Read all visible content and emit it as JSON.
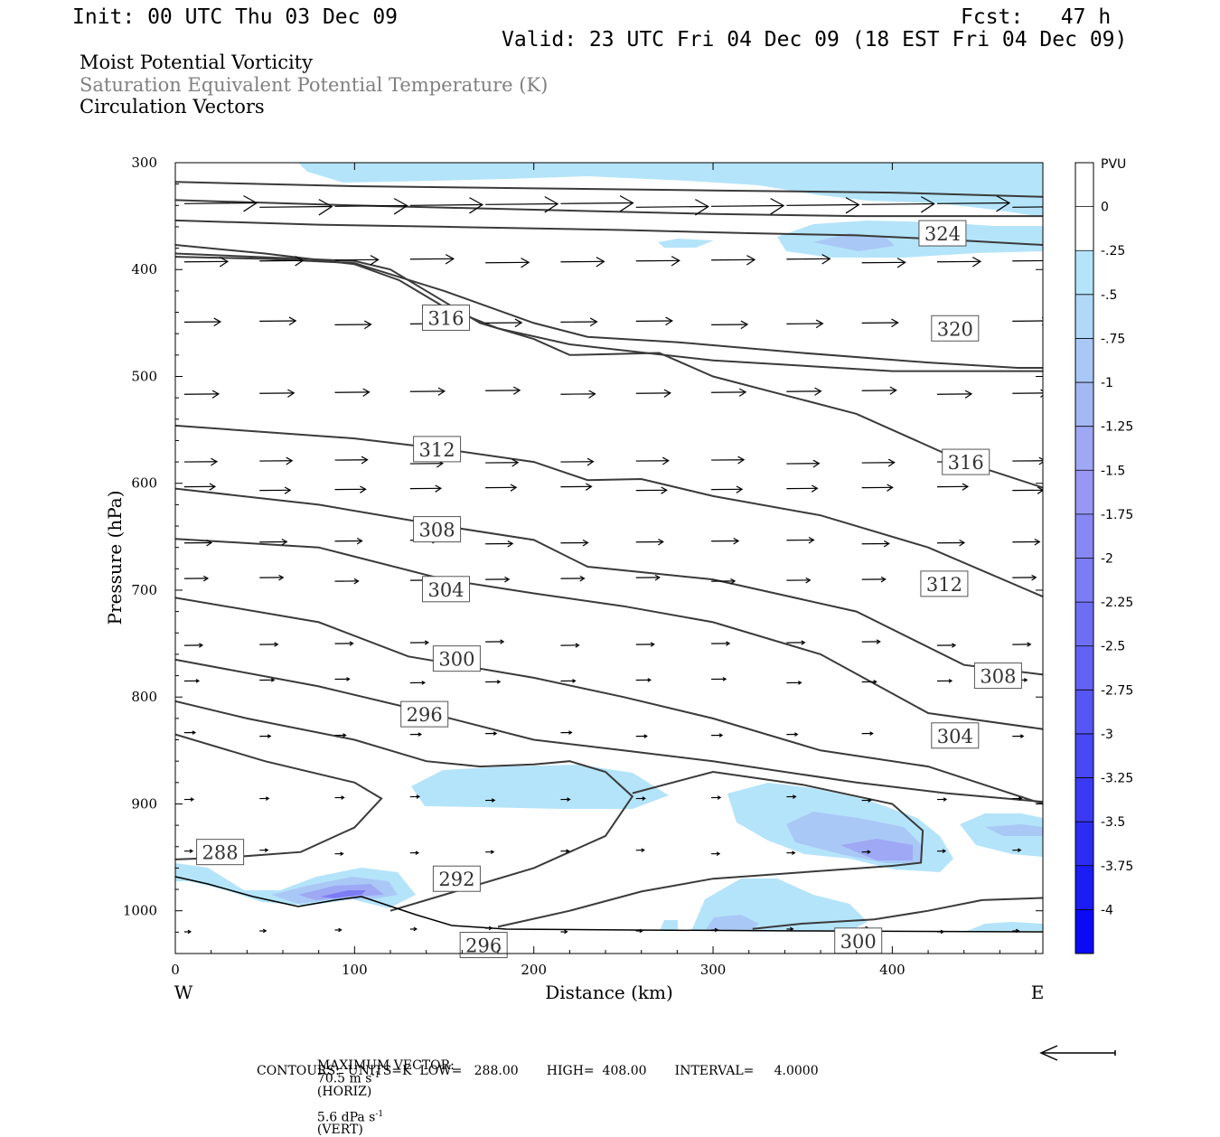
{
  "header": {
    "init": "Init: 00 UTC Thu 03 Dec 09",
    "fcst": "Fcst:   47 h",
    "valid": "Valid: 23 UTC Fri 04 Dec 09 (18 EST Fri 04 Dec 09)"
  },
  "legend": {
    "line1": "Moist Potential Vorticity",
    "line2": "Saturation Equivalent Potential Temperature (K)",
    "line3": "Circulation Vectors",
    "line1_color": "#000000",
    "line2_color": "#808080",
    "line3_color": "#000000"
  },
  "footer": {
    "max_vector_label": "MAXIMUM VECTOR:",
    "horiz_value": "70.5 m s",
    "horiz_exp": "-1",
    "horiz_unit": "(HORIZ)",
    "vert_value": "5.6 dPa s",
    "vert_exp": "-1",
    "vert_unit": "(VERT)",
    "contours": "CONTOURS:  UNITS=K  LOW=   288.00       HIGH=  408.00       INTERVAL=     4.0000"
  },
  "chart_data": {
    "type": "cross-section",
    "xlabel": "Distance (km)",
    "ylabel": "Pressure (hPa)",
    "xlim": [
      0,
      484
    ],
    "ylim": [
      1040,
      300
    ],
    "x_ticks": [
      0,
      100,
      200,
      300,
      400
    ],
    "y_ticks": [
      300,
      400,
      500,
      600,
      700,
      800,
      900,
      1000
    ],
    "x_end_labels": {
      "left": "W",
      "right": "E"
    },
    "colorbar": {
      "unit": "PVU",
      "levels": [
        "0",
        "-.25",
        "-.5",
        "-.75",
        "-1",
        "-1.25",
        "-1.5",
        "-1.75",
        "-2",
        "-2.25",
        "-2.5",
        "-2.75",
        "-3",
        "-3.25",
        "-3.5",
        "-3.75",
        "-4"
      ],
      "colors": [
        "#ffffff",
        "#ffffff",
        "#b4e4fa",
        "#b0d8f8",
        "#aac8f6",
        "#a4b8f4",
        "#9ea8f4",
        "#9898f4",
        "#8888f4",
        "#7c7cf4",
        "#6e6ef4",
        "#6262f4",
        "#5656f4",
        "#4848f4",
        "#3a3af4",
        "#2c2cf4",
        "#1c1cf4",
        "#0a0af4"
      ]
    },
    "contour_labels": [
      {
        "value": "324",
        "x": 428,
        "p": 366
      },
      {
        "value": "316",
        "x": 151,
        "p": 445
      },
      {
        "value": "320",
        "x": 435,
        "p": 455
      },
      {
        "value": "312",
        "x": 146,
        "p": 568
      },
      {
        "value": "316",
        "x": 441,
        "p": 580
      },
      {
        "value": "308",
        "x": 146,
        "p": 643
      },
      {
        "value": "304",
        "x": 151,
        "p": 699
      },
      {
        "value": "312",
        "x": 429,
        "p": 694
      },
      {
        "value": "300",
        "x": 157,
        "p": 764
      },
      {
        "value": "308",
        "x": 459,
        "p": 780
      },
      {
        "value": "296",
        "x": 139,
        "p": 816
      },
      {
        "value": "304",
        "x": 435,
        "p": 836
      },
      {
        "value": "288",
        "x": 25,
        "p": 945
      },
      {
        "value": "292",
        "x": 157,
        "p": 970
      },
      {
        "value": "296",
        "x": 172,
        "p": 1032
      },
      {
        "value": "300",
        "x": 381,
        "p": 1028
      }
    ],
    "isentropes": [
      [
        [
          0,
          318
        ],
        [
          100,
          322
        ],
        [
          200,
          324
        ],
        [
          300,
          326
        ],
        [
          400,
          328
        ],
        [
          484,
          332
        ]
      ],
      [
        [
          0,
          335
        ],
        [
          100,
          340
        ],
        [
          200,
          344
        ],
        [
          300,
          348
        ],
        [
          380,
          350
        ],
        [
          484,
          350
        ]
      ],
      [
        [
          0,
          354
        ],
        [
          80,
          358
        ],
        [
          150,
          360
        ],
        [
          250,
          363
        ],
        [
          320,
          366
        ],
        [
          380,
          368
        ],
        [
          430,
          372
        ],
        [
          484,
          377
        ]
      ],
      [
        [
          0,
          377
        ],
        [
          50,
          385
        ],
        [
          100,
          395
        ],
        [
          125,
          410
        ],
        [
          150,
          435
        ],
        [
          180,
          455
        ],
        [
          220,
          470
        ],
        [
          300,
          485
        ],
        [
          400,
          495
        ],
        [
          484,
          495
        ]
      ],
      [
        [
          0,
          388
        ],
        [
          50,
          390
        ],
        [
          100,
          394
        ],
        [
          150,
          420
        ],
        [
          200,
          450
        ],
        [
          230,
          463
        ],
        [
          280,
          468
        ],
        [
          350,
          478
        ],
        [
          420,
          487
        ],
        [
          470,
          492
        ],
        [
          484,
          492
        ]
      ],
      [
        [
          0,
          385
        ],
        [
          100,
          392
        ],
        [
          120,
          400
        ],
        [
          145,
          425
        ],
        [
          170,
          450
        ],
        [
          200,
          465
        ],
        [
          220,
          480
        ],
        [
          270,
          478
        ],
        [
          300,
          500
        ],
        [
          380,
          535
        ],
        [
          440,
          580
        ],
        [
          484,
          604
        ]
      ],
      [
        [
          0,
          546
        ],
        [
          100,
          558
        ],
        [
          150,
          568
        ],
        [
          200,
          580
        ],
        [
          230,
          597
        ],
        [
          260,
          596
        ],
        [
          300,
          612
        ],
        [
          360,
          630
        ],
        [
          420,
          660
        ],
        [
          484,
          706
        ]
      ],
      [
        [
          0,
          605
        ],
        [
          80,
          620
        ],
        [
          150,
          640
        ],
        [
          200,
          653
        ],
        [
          230,
          678
        ],
        [
          300,
          690
        ],
        [
          380,
          720
        ],
        [
          440,
          770
        ],
        [
          484,
          779
        ]
      ],
      [
        [
          0,
          652
        ],
        [
          80,
          660
        ],
        [
          150,
          690
        ],
        [
          200,
          703
        ],
        [
          250,
          715
        ],
        [
          300,
          730
        ],
        [
          360,
          760
        ],
        [
          420,
          815
        ],
        [
          484,
          830
        ]
      ],
      [
        [
          0,
          707
        ],
        [
          80,
          730
        ],
        [
          130,
          762
        ],
        [
          200,
          782
        ],
        [
          250,
          800
        ],
        [
          300,
          820
        ],
        [
          360,
          850
        ],
        [
          420,
          865
        ],
        [
          484,
          900
        ]
      ],
      [
        [
          0,
          765
        ],
        [
          80,
          790
        ],
        [
          130,
          810
        ],
        [
          200,
          840
        ],
        [
          250,
          850
        ],
        [
          300,
          860
        ],
        [
          380,
          880
        ],
        [
          430,
          890
        ],
        [
          484,
          898
        ]
      ],
      [
        [
          0,
          804
        ],
        [
          40,
          820
        ],
        [
          100,
          840
        ],
        [
          140,
          860
        ],
        [
          170,
          865
        ],
        [
          200,
          863
        ],
        [
          220,
          860
        ],
        [
          240,
          870
        ],
        [
          255,
          893
        ],
        [
          240,
          930
        ],
        [
          200,
          960
        ],
        [
          150,
          985
        ],
        [
          120,
          1000
        ]
      ],
      [
        [
          0,
          835
        ],
        [
          50,
          860
        ],
        [
          100,
          880
        ],
        [
          115,
          895
        ],
        [
          100,
          922
        ],
        [
          70,
          945
        ],
        [
          30,
          950
        ],
        [
          0,
          952
        ]
      ],
      [
        [
          180,
          1015
        ],
        [
          220,
          1000
        ],
        [
          260,
          982
        ],
        [
          300,
          970
        ],
        [
          400,
          958
        ],
        [
          416,
          955
        ],
        [
          417,
          925
        ],
        [
          400,
          900
        ],
        [
          350,
          882
        ],
        [
          300,
          870
        ],
        [
          255,
          890
        ]
      ],
      [
        [
          322,
          1017
        ],
        [
          350,
          1012
        ],
        [
          390,
          1008
        ],
        [
          420,
          1000
        ],
        [
          450,
          990
        ],
        [
          484,
          988
        ]
      ]
    ],
    "vector_rows_p": [
      340,
      392,
      450,
      515,
      580,
      605,
      655,
      690,
      750,
      785,
      835,
      895,
      945,
      1018
    ],
    "max_vector": {
      "horiz": 70.5,
      "vert": 5.6
    }
  }
}
